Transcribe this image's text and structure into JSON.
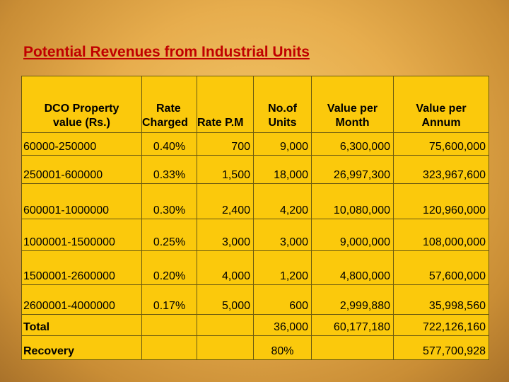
{
  "title": "Potential Revenues from Industrial Units",
  "headers": {
    "property_value": [
      "DCO Property",
      "value  (Rs.)"
    ],
    "rate": [
      "Rate",
      "Charged"
    ],
    "rate_pm": "Rate P.M",
    "units": [
      "No.of",
      "Units"
    ],
    "value_month": [
      "Value per",
      "Month"
    ],
    "value_annum": [
      "Value per",
      "Annum"
    ]
  },
  "rows": [
    {
      "range": "60000-250000",
      "rate": "0.40%",
      "rate_pm": "700",
      "units": "9,000",
      "month": "6,300,000",
      "annum": "75,600,000"
    },
    {
      "range": "250001-600000",
      "rate": "0.33%",
      "rate_pm": "1,500",
      "units": "18,000",
      "month": "26,997,300",
      "annum": "323,967,600"
    },
    {
      "range": "600001-1000000",
      "rate": "0.30%",
      "rate_pm": "2,400",
      "units": "4,200",
      "month": "10,080,000",
      "annum": "120,960,000"
    },
    {
      "range": "1000001-1500000",
      "rate": "0.25%",
      "rate_pm": "3,000",
      "units": "3,000",
      "month": "9,000,000",
      "annum": "108,000,000"
    },
    {
      "range": "1500001-2600000",
      "rate": "0.20%",
      "rate_pm": "4,000",
      "units": "1,200",
      "month": "4,800,000",
      "annum": "57,600,000"
    },
    {
      "range": "2600001-4000000",
      "rate": "0.17%",
      "rate_pm": "5,000",
      "units": "600",
      "month": "2,999,880",
      "annum": "35,998,560"
    }
  ],
  "total": {
    "label": "Total",
    "units": "36,000",
    "month": "60,177,180",
    "annum": "722,126,160"
  },
  "recovery": {
    "label": "Recovery",
    "units": "80%",
    "annum": "577,700,928"
  },
  "colors": {
    "title": "#c00000",
    "table_fill": "#fbc90c"
  }
}
